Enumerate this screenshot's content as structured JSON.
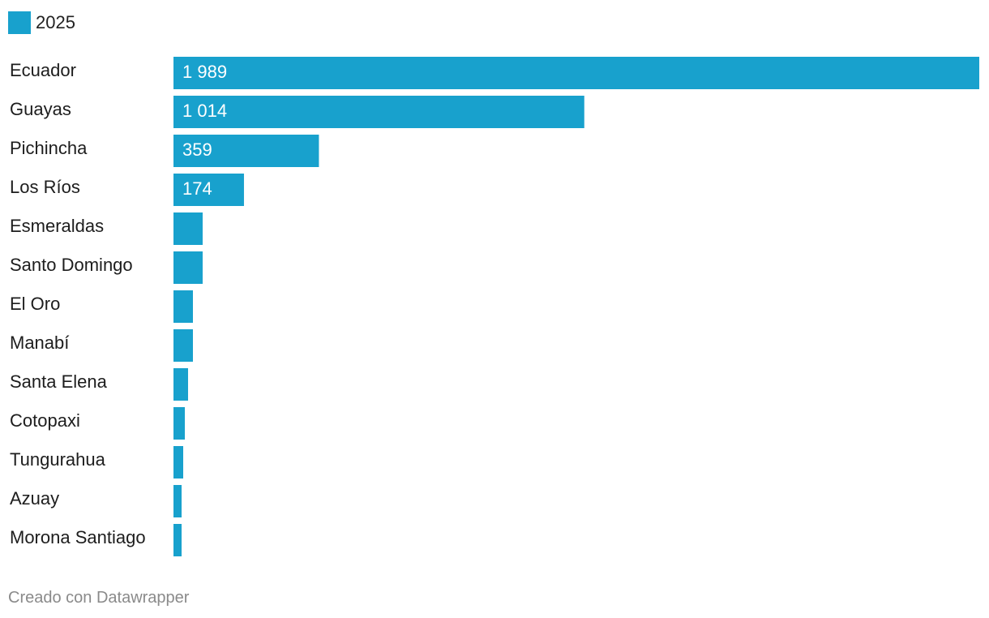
{
  "legend": {
    "label": "2025",
    "color": "#18a1cd"
  },
  "footer": {
    "text": "Creado con Datawrapper"
  },
  "chart_data": {
    "type": "bar",
    "orientation": "horizontal",
    "categories": [
      "Ecuador",
      "Guayas",
      "Pichincha",
      "Los Ríos",
      "Esmeraldas",
      "Santo Domingo",
      "El Oro",
      "Manabí",
      "Santa Elena",
      "Cotopaxi",
      "Tungurahua",
      "Azuay",
      "Morona Santiago"
    ],
    "series": [
      {
        "name": "2025",
        "color": "#18a1cd",
        "values": [
          1989,
          1014,
          359,
          174,
          72,
          72,
          48,
          48,
          36,
          28,
          24,
          20,
          20
        ],
        "labels": [
          "1 989",
          "1 014",
          "359",
          "174",
          "",
          "",
          "",
          "",
          "",
          "",
          "",
          "",
          ""
        ]
      }
    ],
    "xlim": [
      0,
      1989
    ],
    "grid": false,
    "legend_position": "top-left"
  }
}
